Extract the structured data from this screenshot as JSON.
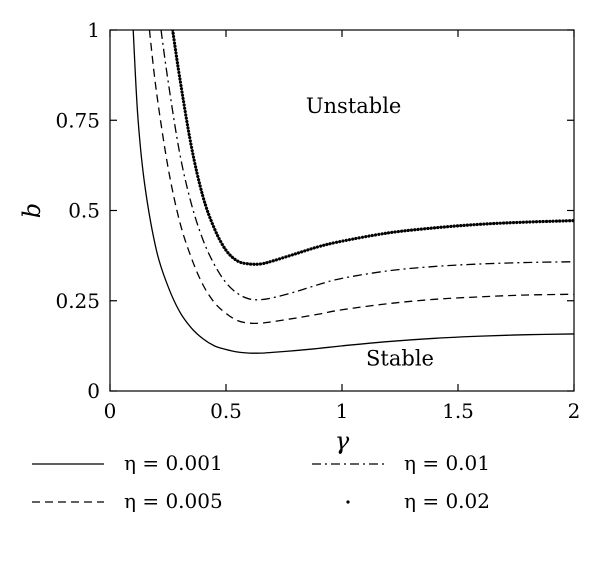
{
  "chart_data": {
    "type": "line",
    "xlabel": "γ",
    "ylabel": "b",
    "xlim": [
      0,
      2
    ],
    "ylim": [
      0,
      1
    ],
    "xticks": [
      "0",
      "0.5",
      "1",
      "1.5",
      "2"
    ],
    "xtick_values": [
      0,
      0.5,
      1,
      1.5,
      2
    ],
    "yticks": [
      "0",
      "0.25",
      "0.5",
      "0.75",
      "1"
    ],
    "ytick_values": [
      0,
      0.25,
      0.5,
      0.75,
      1
    ],
    "grid": false,
    "legend_position": "bottom",
    "annotations": [
      {
        "text": "Unstable",
        "x": 1.05,
        "y": 0.79
      },
      {
        "text": "Stable",
        "x": 1.25,
        "y": 0.09
      }
    ],
    "series": [
      {
        "name": "η = 0.001",
        "style": "solid",
        "x": [
          0.1,
          0.12,
          0.15,
          0.2,
          0.25,
          0.3,
          0.35,
          0.4,
          0.45,
          0.5,
          0.55,
          0.6,
          0.65,
          0.7,
          0.8,
          0.9,
          1.0,
          1.2,
          1.4,
          1.6,
          1.8,
          2.0
        ],
        "y": [
          1.0,
          0.76,
          0.57,
          0.39,
          0.29,
          0.22,
          0.175,
          0.145,
          0.125,
          0.115,
          0.108,
          0.105,
          0.105,
          0.107,
          0.112,
          0.118,
          0.125,
          0.137,
          0.146,
          0.152,
          0.156,
          0.158
        ]
      },
      {
        "name": "η = 0.005",
        "style": "dashed",
        "x": [
          0.17,
          0.2,
          0.25,
          0.3,
          0.35,
          0.4,
          0.45,
          0.5,
          0.55,
          0.6,
          0.65,
          0.7,
          0.8,
          0.9,
          1.0,
          1.2,
          1.4,
          1.6,
          1.8,
          2.0
        ],
        "y": [
          1.0,
          0.83,
          0.62,
          0.47,
          0.37,
          0.295,
          0.245,
          0.215,
          0.195,
          0.188,
          0.188,
          0.192,
          0.202,
          0.213,
          0.225,
          0.242,
          0.254,
          0.261,
          0.266,
          0.268
        ]
      },
      {
        "name": "η = 0.01",
        "style": "dashdot",
        "x": [
          0.22,
          0.25,
          0.3,
          0.35,
          0.4,
          0.45,
          0.5,
          0.55,
          0.6,
          0.65,
          0.7,
          0.8,
          0.9,
          1.0,
          1.2,
          1.4,
          1.6,
          1.8,
          2.0
        ],
        "y": [
          1.0,
          0.86,
          0.66,
          0.52,
          0.42,
          0.35,
          0.3,
          0.27,
          0.255,
          0.253,
          0.258,
          0.275,
          0.295,
          0.312,
          0.333,
          0.345,
          0.352,
          0.356,
          0.358
        ]
      },
      {
        "name": "η = 0.02",
        "style": "dotted",
        "x": [
          0.27,
          0.3,
          0.35,
          0.4,
          0.45,
          0.5,
          0.55,
          0.6,
          0.65,
          0.7,
          0.8,
          0.9,
          1.0,
          1.2,
          1.4,
          1.6,
          1.8,
          2.0
        ],
        "y": [
          1.0,
          0.87,
          0.68,
          0.54,
          0.45,
          0.39,
          0.36,
          0.352,
          0.352,
          0.36,
          0.38,
          0.4,
          0.415,
          0.438,
          0.452,
          0.462,
          0.468,
          0.472
        ]
      }
    ]
  }
}
